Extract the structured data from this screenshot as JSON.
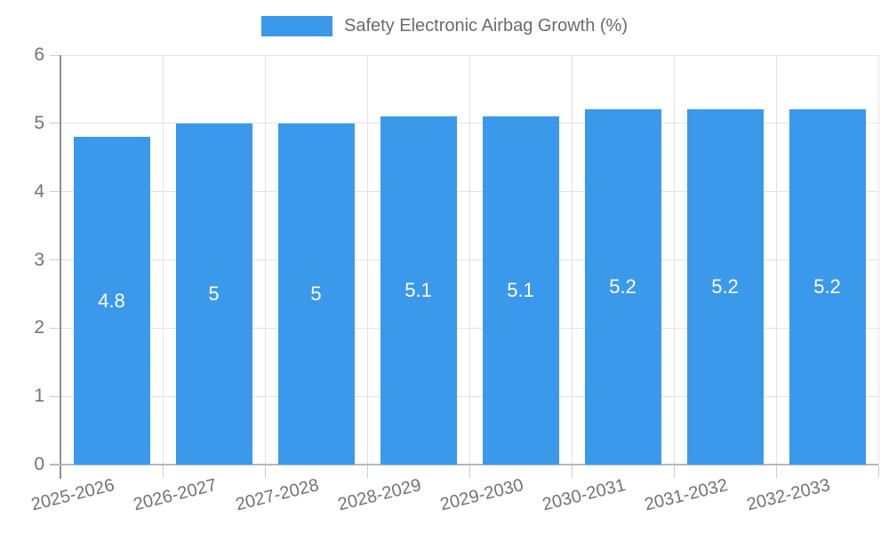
{
  "chart_data": {
    "type": "bar",
    "title": "Safety Electronic Airbag Growth (%)",
    "legend": {
      "label": "Safety Electronic Airbag Growth (%)",
      "position": "top"
    },
    "categories": [
      "2025-2026",
      "2026-2027",
      "2027-2028",
      "2028-2029",
      "2029-2030",
      "2030-2031",
      "2031-2032",
      "2032-2033"
    ],
    "values": [
      4.8,
      5,
      5,
      5.1,
      5.1,
      5.2,
      5.2,
      5.2
    ],
    "bar_labels": [
      "4.8",
      "5",
      "5",
      "5.1",
      "5.1",
      "5.2",
      "5.2",
      "5.2"
    ],
    "xlabel": "",
    "ylabel": "",
    "ylim": [
      0,
      6
    ],
    "yticks": [
      "0",
      "1",
      "2",
      "3",
      "4",
      "5",
      "6"
    ],
    "grid": true,
    "colors": {
      "bar": "#3B99EC",
      "grid": "#E3E3E3",
      "axis": "#8F8F8F",
      "baseline": "#B8B8B8",
      "tick": "#CCCCCC",
      "axis_text": "#737373",
      "legend_text": "#6B6B6B",
      "bar_label": "#FFFFFF"
    }
  }
}
